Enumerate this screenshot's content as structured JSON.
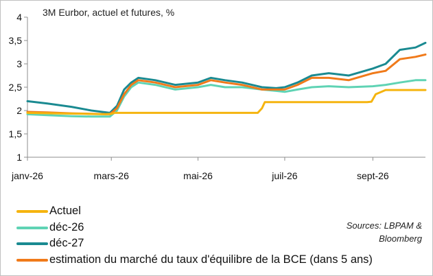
{
  "title": "3M Eurbor, actuel et futures, %",
  "source_lines": [
    "Sources: LBPAM &",
    "Bloomberg"
  ],
  "chart_data": {
    "type": "line",
    "title": "3M Eurbor, actuel et futures, %",
    "xlabel": "",
    "ylabel": "",
    "ylim": [
      1,
      4
    ],
    "yticks": [
      1,
      1.5,
      2,
      2.5,
      3,
      3.5,
      4
    ],
    "ytick_labels": [
      "1",
      "1,5",
      "2",
      "2,5",
      "3",
      "3,5",
      "4"
    ],
    "xlim": [
      "2026-01-01",
      "2026-10-08"
    ],
    "xticks": [
      "2026-01-01",
      "2026-03-01",
      "2026-05-01",
      "2026-07-01",
      "2026-09-01"
    ],
    "xtick_labels": [
      "janv-26",
      "mars-26",
      "mai-26",
      "juil-26",
      "sept-26"
    ],
    "grid": false,
    "legend_position": "bottom",
    "series": [
      {
        "name": "Actuel",
        "color": "#f5b40f",
        "x": [
          "2026-01-01",
          "2026-01-20",
          "2026-02-10",
          "2026-02-25",
          "2026-03-01",
          "2026-03-03",
          "2026-04-01",
          "2026-05-01",
          "2026-06-01",
          "2026-06-12",
          "2026-06-15",
          "2026-06-17",
          "2026-07-01",
          "2026-08-01",
          "2026-08-28",
          "2026-08-31",
          "2026-09-03",
          "2026-09-10",
          "2026-10-08"
        ],
        "y": [
          1.95,
          1.94,
          1.93,
          1.92,
          1.93,
          1.95,
          1.95,
          1.95,
          1.95,
          1.95,
          2.05,
          2.18,
          2.18,
          2.18,
          2.18,
          2.19,
          2.35,
          2.44,
          2.44
        ]
      },
      {
        "name": "déc-26",
        "color": "#5fd3b4",
        "x": [
          "2026-01-01",
          "2026-01-15",
          "2026-02-01",
          "2026-02-15",
          "2026-02-28",
          "2026-03-05",
          "2026-03-10",
          "2026-03-15",
          "2026-03-20",
          "2026-04-01",
          "2026-04-15",
          "2026-05-01",
          "2026-05-10",
          "2026-05-20",
          "2026-06-01",
          "2026-06-15",
          "2026-06-25",
          "2026-07-01",
          "2026-07-10",
          "2026-07-20",
          "2026-08-01",
          "2026-08-15",
          "2026-09-01",
          "2026-09-10",
          "2026-09-20",
          "2026-10-01",
          "2026-10-08"
        ],
        "y": [
          1.92,
          1.9,
          1.88,
          1.87,
          1.87,
          2.0,
          2.3,
          2.5,
          2.6,
          2.55,
          2.45,
          2.5,
          2.55,
          2.5,
          2.5,
          2.45,
          2.42,
          2.4,
          2.45,
          2.5,
          2.52,
          2.5,
          2.52,
          2.55,
          2.6,
          2.65,
          2.65
        ]
      },
      {
        "name": "déc-27",
        "color": "#1a8a91",
        "x": [
          "2026-01-01",
          "2026-01-15",
          "2026-02-01",
          "2026-02-15",
          "2026-02-28",
          "2026-03-05",
          "2026-03-10",
          "2026-03-15",
          "2026-03-20",
          "2026-04-01",
          "2026-04-15",
          "2026-05-01",
          "2026-05-10",
          "2026-05-20",
          "2026-06-01",
          "2026-06-15",
          "2026-06-25",
          "2026-07-01",
          "2026-07-10",
          "2026-07-20",
          "2026-08-01",
          "2026-08-15",
          "2026-09-01",
          "2026-09-10",
          "2026-09-20",
          "2026-10-01",
          "2026-10-08"
        ],
        "y": [
          2.2,
          2.15,
          2.08,
          2.0,
          1.95,
          2.1,
          2.45,
          2.6,
          2.7,
          2.65,
          2.55,
          2.6,
          2.7,
          2.65,
          2.6,
          2.5,
          2.48,
          2.5,
          2.6,
          2.75,
          2.8,
          2.75,
          2.9,
          3.0,
          3.3,
          3.35,
          3.45
        ]
      },
      {
        "name": "estimation du marché du taux d'équilibre de la BCE (dans 5 ans)",
        "color": "#f07a1a",
        "x": [
          "2026-01-01",
          "2026-01-15",
          "2026-02-01",
          "2026-02-15",
          "2026-02-28",
          "2026-03-05",
          "2026-03-10",
          "2026-03-15",
          "2026-03-20",
          "2026-04-01",
          "2026-04-15",
          "2026-05-01",
          "2026-05-10",
          "2026-05-20",
          "2026-06-01",
          "2026-06-15",
          "2026-06-25",
          "2026-07-01",
          "2026-07-10",
          "2026-07-20",
          "2026-08-01",
          "2026-08-15",
          "2026-09-01",
          "2026-09-10",
          "2026-09-20",
          "2026-10-01",
          "2026-10-08"
        ],
        "y": [
          1.97,
          1.96,
          1.94,
          1.93,
          1.92,
          2.05,
          2.35,
          2.55,
          2.65,
          2.6,
          2.5,
          2.55,
          2.65,
          2.6,
          2.55,
          2.45,
          2.45,
          2.45,
          2.55,
          2.7,
          2.7,
          2.65,
          2.8,
          2.85,
          3.1,
          3.15,
          3.2
        ]
      }
    ]
  }
}
